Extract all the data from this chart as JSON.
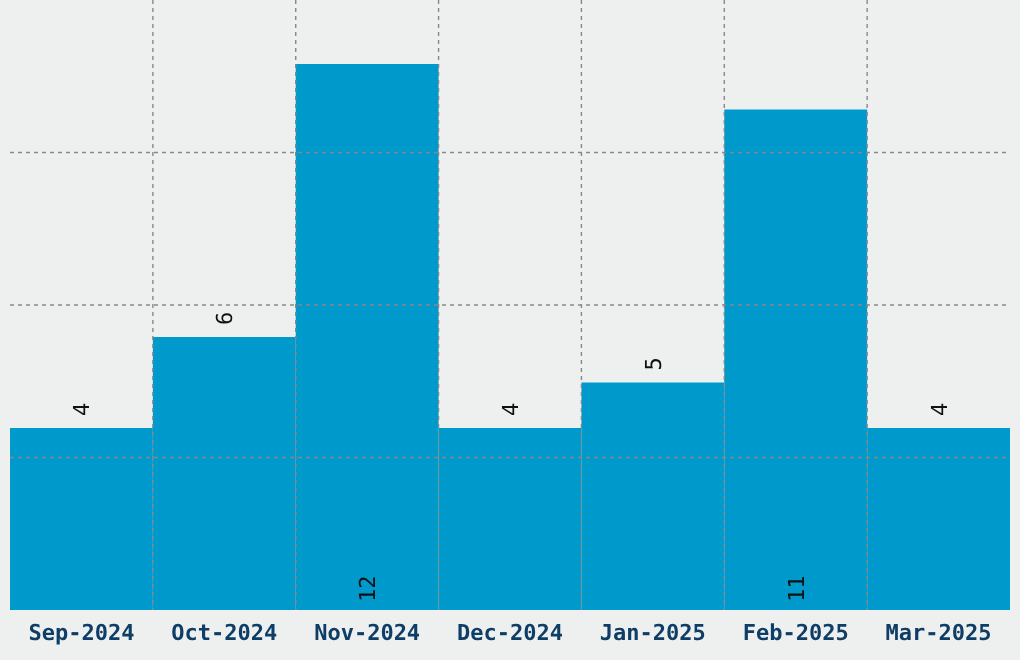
{
  "chart_data": {
    "type": "bar",
    "categories": [
      "Sep-2024",
      "Oct-2024",
      "Nov-2024",
      "Dec-2024",
      "Jan-2025",
      "Feb-2025",
      "Mar-2025"
    ],
    "values": [
      4,
      6,
      12,
      4,
      5,
      11,
      4
    ],
    "color": "#0099cc",
    "data_labels": true,
    "tick_labels": "x",
    "grid": true
  }
}
